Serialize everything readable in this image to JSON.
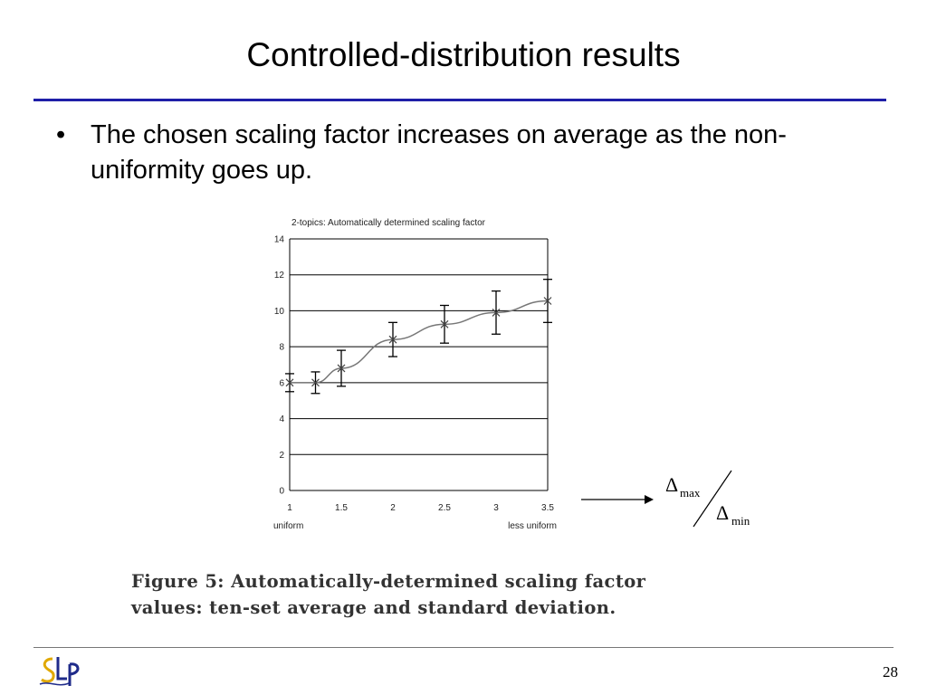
{
  "slide": {
    "title": "Controlled-distribution results",
    "bullet": "The chosen scaling factor increases on average as the non-uniformity goes up.",
    "bullet_symbol": "•",
    "caption_line1": "Figure 5: Automatically-determined scaling factor",
    "caption_line2": "values: ten-set average and standard deviation.",
    "page_number": "28",
    "logo_text": "SLP",
    "accent_color": "#1f1fa8",
    "delta_symbol": "Δ",
    "delta_max_sub": "max",
    "delta_min_sub": "min"
  },
  "chart_data": {
    "type": "line",
    "title": "2-topics: Automatically determined scaling factor",
    "x": [
      1,
      1.25,
      1.5,
      2,
      2.5,
      3,
      3.5
    ],
    "series": [
      {
        "values": [
          6.0,
          6.0,
          6.8,
          8.4,
          9.25,
          9.9,
          10.55
        ],
        "error": [
          0.5,
          0.6,
          1.0,
          0.95,
          1.05,
          1.2,
          1.2
        ]
      }
    ],
    "xticks": [
      "1",
      "1.5",
      "2",
      "2.5",
      "3",
      "3.5"
    ],
    "xtick_values": [
      1,
      1.5,
      2,
      2.5,
      3,
      3.5
    ],
    "yticks": [
      "0",
      "2",
      "4",
      "6",
      "8",
      "10",
      "12",
      "14"
    ],
    "xlim": [
      1,
      3.5
    ],
    "ylim": [
      0,
      14
    ],
    "x_left_label": "uniform",
    "x_right_label": "less uniform",
    "grid": "horizontal"
  }
}
